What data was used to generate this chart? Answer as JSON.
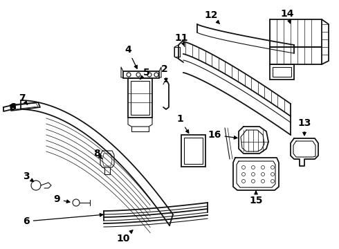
{
  "bg_color": "#ffffff",
  "line_color": "#111111",
  "label_color": "#000000",
  "label_fontsize": 10,
  "label_fontweight": "bold",
  "arrow_color": "#000000",
  "figw": 4.9,
  "figh": 3.6,
  "dpi": 100
}
